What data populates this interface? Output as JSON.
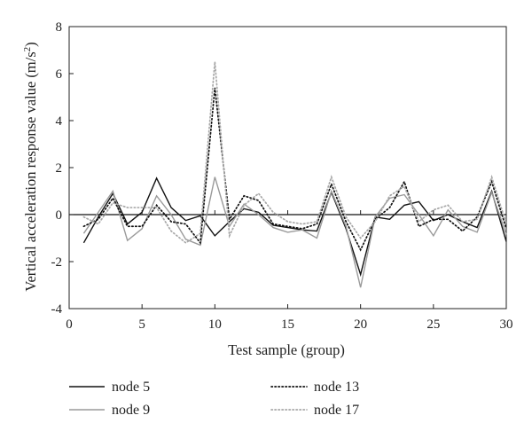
{
  "chart_data": {
    "type": "line",
    "xlabel": "Test sample (group)",
    "ylabel_main": "Vertical acceleration response value (m/s",
    "ylabel_sup": "2",
    "ylabel_tail": ")",
    "xlim": [
      0,
      30
    ],
    "ylim": [
      -4,
      8
    ],
    "xticks": [
      0,
      5,
      10,
      15,
      20,
      25,
      30
    ],
    "yticks": [
      -4,
      -2,
      0,
      2,
      4,
      6,
      8
    ],
    "grid": false,
    "legend_position": "bottom",
    "zero_line": true,
    "x": [
      1,
      2,
      3,
      4,
      5,
      6,
      7,
      8,
      9,
      10,
      11,
      12,
      13,
      14,
      15,
      16,
      17,
      18,
      19,
      20,
      21,
      22,
      23,
      24,
      25,
      26,
      27,
      28,
      29,
      30
    ],
    "series": [
      {
        "name": "node 5",
        "style": "solid",
        "color": "#111111",
        "values": [
          -1.2,
          -0.1,
          0.9,
          -0.4,
          0.1,
          1.55,
          0.3,
          -0.25,
          -0.05,
          -0.9,
          -0.3,
          0.25,
          0.1,
          -0.45,
          -0.55,
          -0.65,
          -0.7,
          0.95,
          -0.6,
          -2.55,
          -0.1,
          -0.2,
          0.4,
          0.55,
          -0.25,
          0.0,
          -0.3,
          -0.55,
          1.0,
          -1.15
        ]
      },
      {
        "name": "node 9",
        "style": "solid",
        "color": "#9a9a9a",
        "values": [
          -0.8,
          0.1,
          1.0,
          -1.1,
          -0.6,
          0.8,
          0.0,
          -1.05,
          -1.3,
          1.6,
          -0.5,
          0.45,
          0.0,
          -0.55,
          -0.75,
          -0.65,
          -1.0,
          1.0,
          -0.5,
          -3.1,
          -0.1,
          0.7,
          0.85,
          0.0,
          -0.9,
          0.2,
          -0.5,
          -0.75,
          0.95,
          -0.85
        ]
      },
      {
        "name": "node 13",
        "style": "dotted",
        "color": "#111111",
        "values": [
          -0.5,
          -0.2,
          0.7,
          -0.5,
          -0.5,
          0.4,
          -0.3,
          -0.4,
          -1.2,
          5.4,
          -0.2,
          0.8,
          0.6,
          -0.4,
          -0.5,
          -0.6,
          -0.4,
          1.3,
          -0.3,
          -1.5,
          -0.2,
          0.3,
          1.4,
          -0.5,
          -0.2,
          -0.2,
          -0.7,
          -0.1,
          1.4,
          -0.6
        ]
      },
      {
        "name": "node 17",
        "style": "dotted",
        "color": "#a8a8a8",
        "values": [
          -0.1,
          -0.4,
          0.5,
          0.3,
          0.3,
          0.3,
          -0.7,
          -1.2,
          -0.8,
          6.5,
          -0.9,
          0.4,
          0.9,
          0.1,
          -0.3,
          -0.4,
          -0.3,
          1.6,
          -0.1,
          -1.0,
          -0.3,
          0.8,
          1.2,
          -0.3,
          0.2,
          0.4,
          -0.3,
          -0.2,
          1.6,
          -0.4
        ]
      }
    ]
  }
}
